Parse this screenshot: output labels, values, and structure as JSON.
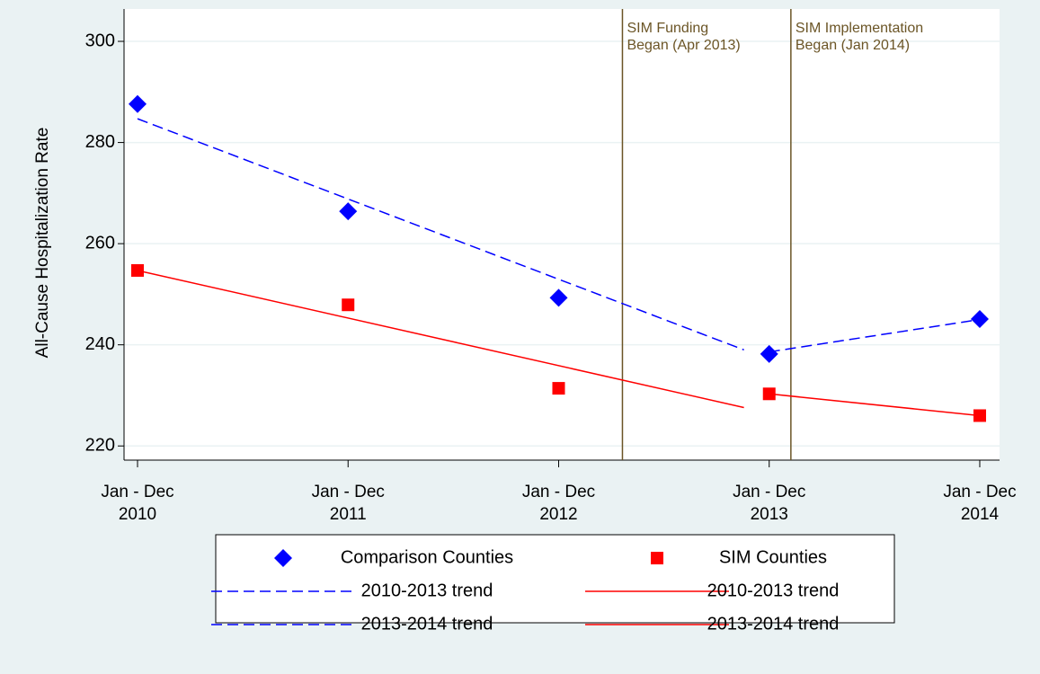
{
  "chart_data": {
    "type": "line",
    "y_label": "All-Cause Hospitalization Rate",
    "xlim": [
      2009.936,
      2014.094
    ],
    "xticks": [
      {
        "value": 2010,
        "label": [
          "Jan - Dec",
          "2010"
        ]
      },
      {
        "value": 2011,
        "label": [
          "Jan - Dec",
          "2011"
        ]
      },
      {
        "value": 2012,
        "label": [
          "Jan - Dec",
          "2012"
        ]
      },
      {
        "value": 2013,
        "label": [
          "Jan - Dec",
          "2013"
        ]
      },
      {
        "value": 2014,
        "label": [
          "Jan - Dec",
          "2014"
        ]
      }
    ],
    "ylim": [
      217.2,
      306.4
    ],
    "yticks": [
      220,
      240,
      260,
      280,
      300
    ],
    "grid": true,
    "series": [
      {
        "name": "Comparison Counties",
        "color": "#0000ff",
        "marker": "diamond",
        "x": [
          2010,
          2011,
          2012,
          2013,
          2014
        ],
        "values": [
          287.6,
          266.4,
          249.3,
          238.2,
          245.1
        ]
      },
      {
        "name": "SIM Counties",
        "color": "#ff0000",
        "marker": "square",
        "x": [
          2010,
          2011,
          2012,
          2013,
          2014
        ],
        "values": [
          254.7,
          247.9,
          231.4,
          230.3,
          226.0
        ]
      },
      {
        "name": "2010-2013 trend",
        "color": "#0000ff",
        "dash": true,
        "x": [
          2010,
          2012.88
        ],
        "values": [
          284.7,
          239.0
        ]
      },
      {
        "name": "2010-2013 trend",
        "color": "#ff0000",
        "x": [
          2010,
          2012.88
        ],
        "values": [
          254.7,
          227.6
        ]
      },
      {
        "name": "2013-2014 trend",
        "color": "#0000ff",
        "dash": true,
        "x": [
          2013,
          2014
        ],
        "values": [
          238.6,
          245.0
        ]
      },
      {
        "name": "2013-2014 trend",
        "color": "#ff0000",
        "x": [
          2013,
          2014
        ],
        "values": [
          230.3,
          226.0
        ]
      }
    ],
    "annotations": [
      {
        "x": 2012.303,
        "text": [
          "SIM Funding",
          "Began (Apr 2013)"
        ],
        "color": "#6b5526"
      },
      {
        "x": 2013.103,
        "text": [
          "SIM Implementation",
          "Began (Jan 2014)"
        ],
        "color": "#6b5526"
      }
    ]
  }
}
